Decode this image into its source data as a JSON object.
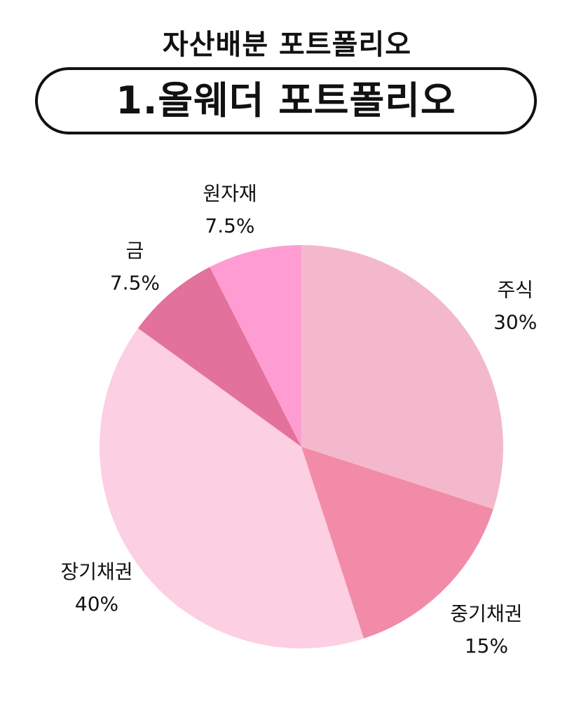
{
  "header": {
    "subtitle": "자산배분 포트폴리오",
    "title": "1.올웨더 포트폴리오"
  },
  "chart_data": {
    "type": "pie",
    "title": "1.올웨더 포트폴리오",
    "start": "12 o'clock",
    "direction": "clockwise",
    "legend": "none (labels outside slices)",
    "slices": [
      {
        "label": "주식",
        "value": 30,
        "value_label": "30%",
        "color": "#F4B8CC"
      },
      {
        "label": "중기채권",
        "value": 15,
        "value_label": "15%",
        "color": "#F28BA7"
      },
      {
        "label": "장기채권",
        "value": 40,
        "value_label": "40%",
        "color": "#FCCFE2"
      },
      {
        "label": "금",
        "value": 7.5,
        "value_label": "7.5%",
        "color": "#E2719C"
      },
      {
        "label": "원자재",
        "value": 7.5,
        "value_label": "7.5%",
        "color": "#FF9DD2"
      }
    ]
  }
}
